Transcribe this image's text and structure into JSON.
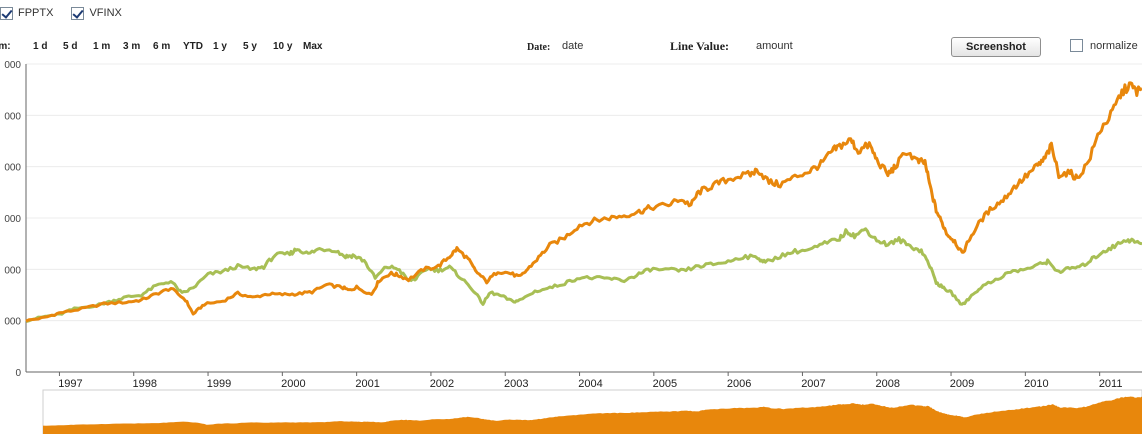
{
  "legend": {
    "items": [
      {
        "label": "FPPTX",
        "checked": true,
        "color": "#e8870c"
      },
      {
        "label": "VFINX",
        "checked": true,
        "color": "#a8bf55"
      }
    ]
  },
  "toolbar": {
    "zoom_label": "Zoom:",
    "zoom_options": [
      "1 d",
      "5 d",
      "1 m",
      "3 m",
      "6 m",
      "YTD",
      "1 y",
      "5 y",
      "10 y",
      "Max"
    ],
    "date_label": "Date:",
    "date_value": "date",
    "line_value_label": "Line Value:",
    "line_value_value": "amount",
    "screenshot_label": "Screenshot",
    "normalize_label": "normalize",
    "normalize_checked": false
  },
  "chart_data": {
    "type": "line",
    "x_unit": "year",
    "xlim": [
      1996.55,
      2011.57
    ],
    "ylim": [
      0,
      60000
    ],
    "y_ticks": [
      "000",
      "000",
      "000",
      "000",
      "000",
      "000",
      "0"
    ],
    "x_ticks": [
      1997,
      1998,
      1999,
      2000,
      2001,
      2002,
      2003,
      2004,
      2005,
      2006,
      2007,
      2008,
      2009,
      2010,
      2011
    ],
    "grid": true,
    "series": [
      {
        "color": "#e8870c",
        "points": [
          [
            1996.55,
            10000
          ],
          [
            1996.8,
            10600
          ],
          [
            1997.0,
            11500
          ],
          [
            1997.3,
            12300
          ],
          [
            1997.6,
            13300
          ],
          [
            1997.9,
            13600
          ],
          [
            1998.1,
            14000
          ],
          [
            1998.3,
            15200
          ],
          [
            1998.5,
            16300
          ],
          [
            1998.7,
            14000
          ],
          [
            1998.8,
            11300
          ],
          [
            1998.95,
            13200
          ],
          [
            1999.2,
            13800
          ],
          [
            1999.4,
            15300
          ],
          [
            1999.6,
            14500
          ],
          [
            1999.8,
            15200
          ],
          [
            2000.0,
            15100
          ],
          [
            2000.2,
            15200
          ],
          [
            2000.4,
            15600
          ],
          [
            2000.6,
            17000
          ],
          [
            2000.8,
            16500
          ],
          [
            2000.9,
            15900
          ],
          [
            2001.0,
            16500
          ],
          [
            2001.2,
            15100
          ],
          [
            2001.3,
            17800
          ],
          [
            2001.45,
            19200
          ],
          [
            2001.55,
            18900
          ],
          [
            2001.7,
            18000
          ],
          [
            2001.9,
            20000
          ],
          [
            2002.1,
            20600
          ],
          [
            2002.25,
            22500
          ],
          [
            2002.35,
            24000
          ],
          [
            2002.5,
            22000
          ],
          [
            2002.6,
            19700
          ],
          [
            2002.75,
            17600
          ],
          [
            2002.9,
            19600
          ],
          [
            2003.05,
            19300
          ],
          [
            2003.2,
            18500
          ],
          [
            2003.3,
            20000
          ],
          [
            2003.45,
            22300
          ],
          [
            2003.6,
            24700
          ],
          [
            2003.8,
            26200
          ],
          [
            2004.0,
            28600
          ],
          [
            2004.2,
            29500
          ],
          [
            2004.4,
            30000
          ],
          [
            2004.6,
            30500
          ],
          [
            2004.8,
            31200
          ],
          [
            2004.95,
            32000
          ],
          [
            2005.2,
            32600
          ],
          [
            2005.35,
            33700
          ],
          [
            2005.5,
            32500
          ],
          [
            2005.6,
            35000
          ],
          [
            2005.75,
            36000
          ],
          [
            2005.9,
            37000
          ],
          [
            2006.1,
            38000
          ],
          [
            2006.3,
            38500
          ],
          [
            2006.4,
            39400
          ],
          [
            2006.55,
            37000
          ],
          [
            2006.7,
            36500
          ],
          [
            2006.9,
            38000
          ],
          [
            2007.1,
            39200
          ],
          [
            2007.25,
            40500
          ],
          [
            2007.4,
            43000
          ],
          [
            2007.5,
            44000
          ],
          [
            2007.65,
            45200
          ],
          [
            2007.75,
            43000
          ],
          [
            2007.9,
            44300
          ],
          [
            2008.0,
            41300
          ],
          [
            2008.15,
            38500
          ],
          [
            2008.25,
            40000
          ],
          [
            2008.4,
            43000
          ],
          [
            2008.55,
            41000
          ],
          [
            2008.65,
            40800
          ],
          [
            2008.72,
            36000
          ],
          [
            2008.8,
            31500
          ],
          [
            2008.88,
            29000
          ],
          [
            2008.95,
            26800
          ],
          [
            2009.05,
            25500
          ],
          [
            2009.15,
            23000
          ],
          [
            2009.25,
            26000
          ],
          [
            2009.4,
            29500
          ],
          [
            2009.55,
            32000
          ],
          [
            2009.7,
            33500
          ],
          [
            2009.85,
            36000
          ],
          [
            2010.0,
            38000
          ],
          [
            2010.15,
            40000
          ],
          [
            2010.25,
            41300
          ],
          [
            2010.35,
            44000
          ],
          [
            2010.45,
            38500
          ],
          [
            2010.6,
            38800
          ],
          [
            2010.7,
            37700
          ],
          [
            2010.85,
            41000
          ],
          [
            2011.0,
            47000
          ],
          [
            2011.15,
            50000
          ],
          [
            2011.28,
            54000
          ],
          [
            2011.4,
            56000
          ],
          [
            2011.5,
            54600
          ],
          [
            2011.57,
            55200
          ]
        ]
      },
      {
        "color": "#a8bf55",
        "points": [
          [
            1996.55,
            10000
          ],
          [
            1996.8,
            10800
          ],
          [
            1997.0,
            11200
          ],
          [
            1997.2,
            12300
          ],
          [
            1997.5,
            13000
          ],
          [
            1997.7,
            13800
          ],
          [
            1997.9,
            14600
          ],
          [
            1998.1,
            15000
          ],
          [
            1998.3,
            16800
          ],
          [
            1998.5,
            17700
          ],
          [
            1998.65,
            15300
          ],
          [
            1998.8,
            16400
          ],
          [
            1999.0,
            19000
          ],
          [
            1999.2,
            19600
          ],
          [
            1999.4,
            20600
          ],
          [
            1999.6,
            20000
          ],
          [
            1999.75,
            20500
          ],
          [
            1999.9,
            22800
          ],
          [
            2000.1,
            23000
          ],
          [
            2000.2,
            24000
          ],
          [
            2000.35,
            23000
          ],
          [
            2000.5,
            24000
          ],
          [
            2000.7,
            23800
          ],
          [
            2000.85,
            22500
          ],
          [
            2000.95,
            22700
          ],
          [
            2001.1,
            21700
          ],
          [
            2001.25,
            18300
          ],
          [
            2001.4,
            20500
          ],
          [
            2001.55,
            20200
          ],
          [
            2001.7,
            17800
          ],
          [
            2001.8,
            18200
          ],
          [
            2001.95,
            20200
          ],
          [
            2002.1,
            19800
          ],
          [
            2002.25,
            20400
          ],
          [
            2002.4,
            18400
          ],
          [
            2002.55,
            16300
          ],
          [
            2002.7,
            13300
          ],
          [
            2002.8,
            15500
          ],
          [
            2002.95,
            14800
          ],
          [
            2003.1,
            13700
          ],
          [
            2003.2,
            14000
          ],
          [
            2003.4,
            15700
          ],
          [
            2003.6,
            16400
          ],
          [
            2003.8,
            17300
          ],
          [
            2004.0,
            18400
          ],
          [
            2004.2,
            18300
          ],
          [
            2004.4,
            18200
          ],
          [
            2004.6,
            17800
          ],
          [
            2004.8,
            19100
          ],
          [
            2004.95,
            20000
          ],
          [
            2005.2,
            19900
          ],
          [
            2005.4,
            19700
          ],
          [
            2005.6,
            20600
          ],
          [
            2005.8,
            21000
          ],
          [
            2006.0,
            21500
          ],
          [
            2006.2,
            22500
          ],
          [
            2006.4,
            22300
          ],
          [
            2006.5,
            21300
          ],
          [
            2006.7,
            22600
          ],
          [
            2006.9,
            23500
          ],
          [
            2007.1,
            23800
          ],
          [
            2007.3,
            25000
          ],
          [
            2007.5,
            26000
          ],
          [
            2007.6,
            27500
          ],
          [
            2007.7,
            26500
          ],
          [
            2007.85,
            27800
          ],
          [
            2008.0,
            25700
          ],
          [
            2008.15,
            24800
          ],
          [
            2008.3,
            25800
          ],
          [
            2008.45,
            24500
          ],
          [
            2008.6,
            23600
          ],
          [
            2008.7,
            21200
          ],
          [
            2008.8,
            17500
          ],
          [
            2008.9,
            16300
          ],
          [
            2009.0,
            15500
          ],
          [
            2009.15,
            13000
          ],
          [
            2009.25,
            14500
          ],
          [
            2009.4,
            16500
          ],
          [
            2009.6,
            18000
          ],
          [
            2009.8,
            19500
          ],
          [
            2010.0,
            20000
          ],
          [
            2010.2,
            21000
          ],
          [
            2010.3,
            21500
          ],
          [
            2010.45,
            19500
          ],
          [
            2010.6,
            20200
          ],
          [
            2010.75,
            20500
          ],
          [
            2010.9,
            22000
          ],
          [
            2011.05,
            23500
          ],
          [
            2011.2,
            24500
          ],
          [
            2011.35,
            25800
          ],
          [
            2011.45,
            25500
          ],
          [
            2011.57,
            25000
          ]
        ]
      }
    ]
  }
}
